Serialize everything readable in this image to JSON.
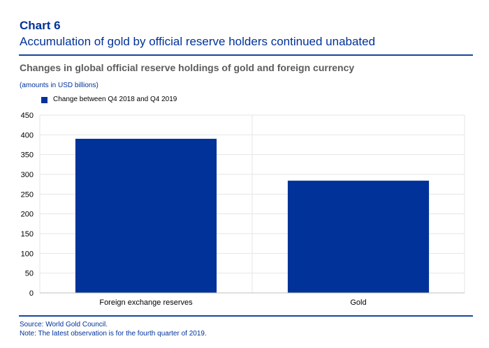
{
  "header": {
    "chart_label": "Chart 6",
    "title": "Accumulation of gold by official reserve holders continued unabated"
  },
  "chart_data": {
    "type": "bar",
    "title": "Changes in global official reserve holdings of gold and foreign currency",
    "units": "(amounts in USD billions)",
    "categories": [
      "Foreign exchange reserves",
      "Gold"
    ],
    "series": [
      {
        "name": "Change between Q4 2018 and Q4 2019",
        "values": [
          390,
          284
        ],
        "color": "#003299"
      }
    ],
    "ylim": [
      0,
      450
    ],
    "yticks": [
      0,
      50,
      100,
      150,
      200,
      250,
      300,
      350,
      400,
      450
    ],
    "grid": true,
    "legend": "top-left",
    "xlabel": "",
    "ylabel": ""
  },
  "footer": {
    "source": "Source: World Gold Council.",
    "note": "Note: The latest observation is for the fourth quarter of 2019."
  }
}
